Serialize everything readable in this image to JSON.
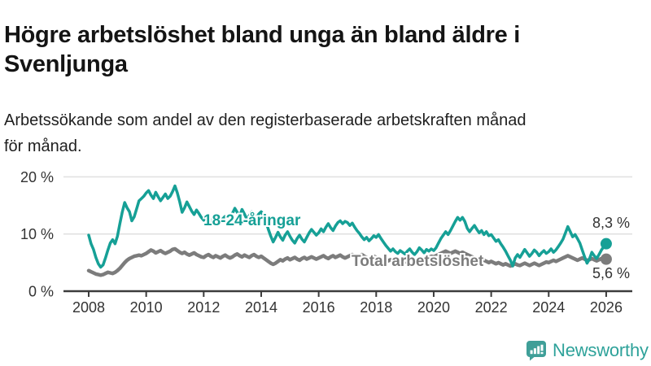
{
  "header": {
    "title": "Högre arbetslöshet bland unga än bland äldre i\nSvenljunga",
    "subtitle": "Arbetssökande som andel av den registerbaserade arbetskraften månad\nför månad."
  },
  "branding": {
    "logo_text": "Newsworthy",
    "logo_color": "#2ea29a",
    "logo_icon": "chart-bars-speech-bubble"
  },
  "colors": {
    "accent_teal": "#16A096",
    "line_gray": "#7c7c7c",
    "axis": "#3c3c3c",
    "grid": "#e1e1e1",
    "tick_text": "#333333"
  },
  "chart_data": {
    "type": "line",
    "unit": "%",
    "x_start_year": 2008,
    "points_per_year": 12,
    "ylim": [
      0,
      20
    ],
    "grid": true,
    "yticks": [
      {
        "value": 0,
        "label": "0 %"
      },
      {
        "value": 10,
        "label": "10 %"
      },
      {
        "value": 20,
        "label": "20 %"
      }
    ],
    "xticks": [
      {
        "year": 2008,
        "label": "2008"
      },
      {
        "year": 2010,
        "label": "2010"
      },
      {
        "year": 2012,
        "label": "2012"
      },
      {
        "year": 2014,
        "label": "2014"
      },
      {
        "year": 2016,
        "label": "2016"
      },
      {
        "year": 2018,
        "label": "2018"
      },
      {
        "year": 2020,
        "label": "2020"
      },
      {
        "year": 2022,
        "label": "2022"
      },
      {
        "year": 2024,
        "label": "2024"
      },
      {
        "year": 2026,
        "label": "2026"
      }
    ],
    "series": [
      {
        "name": "18-24-åringar",
        "color": "#16A096",
        "stroke_width": 3.5,
        "end_label": "8,3 %",
        "end_value": 8.3,
        "values": [
          9.8,
          8.3,
          7.3,
          5.9,
          4.8,
          4.2,
          4.6,
          5.8,
          7.2,
          8.4,
          9.0,
          8.3,
          9.6,
          11.8,
          13.8,
          15.5,
          14.6,
          13.9,
          12.3,
          13.0,
          14.4,
          15.8,
          16.2,
          16.6,
          17.2,
          17.6,
          16.8,
          16.2,
          17.3,
          16.5,
          15.8,
          16.4,
          17.0,
          16.2,
          16.6,
          17.4,
          18.4,
          17.2,
          15.6,
          13.8,
          14.6,
          15.6,
          14.8,
          14.0,
          13.4,
          14.2,
          13.6,
          12.9,
          12.4,
          13.2,
          12.6,
          12.1,
          12.9,
          13.4,
          12.6,
          12.0,
          12.7,
          13.1,
          12.4,
          12.8,
          13.6,
          14.5,
          13.8,
          13.1,
          14.3,
          13.5,
          12.6,
          13.2,
          13.9,
          13.4,
          12.8,
          13.5,
          13.9,
          13.2,
          12.1,
          10.8,
          9.6,
          8.6,
          9.4,
          10.3,
          9.5,
          8.9,
          9.8,
          10.4,
          9.6,
          8.9,
          8.4,
          9.2,
          9.8,
          9.1,
          8.6,
          9.4,
          10.2,
          10.8,
          10.3,
          9.8,
          10.2,
          10.9,
          10.4,
          11.2,
          11.8,
          11.1,
          10.6,
          11.4,
          12.0,
          12.3,
          11.8,
          12.2,
          12.0,
          11.5,
          11.9,
          11.2,
          10.6,
          10.1,
          9.5,
          9.0,
          9.4,
          8.8,
          9.2,
          9.7,
          9.4,
          9.9,
          9.2,
          8.6,
          8.0,
          7.5,
          7.0,
          7.4,
          6.9,
          6.6,
          7.1,
          6.8,
          6.5,
          7.0,
          7.4,
          6.8,
          6.4,
          6.9,
          7.6,
          7.2,
          6.7,
          7.3,
          7.0,
          7.4,
          7.1,
          7.6,
          8.4,
          9.2,
          9.8,
          10.4,
          9.9,
          10.6,
          11.4,
          12.2,
          12.9,
          12.4,
          12.9,
          12.2,
          11.0,
          10.4,
          11.0,
          11.5,
          10.8,
          10.2,
          10.6,
          9.9,
          10.4,
          9.7,
          9.9,
          9.3,
          8.7,
          9.0,
          8.3,
          7.7,
          7.0,
          6.2,
          5.4,
          4.4,
          5.8,
          6.4,
          5.9,
          6.6,
          7.3,
          6.7,
          6.1,
          6.6,
          7.2,
          6.8,
          6.2,
          6.7,
          7.1,
          6.6,
          6.9,
          7.4,
          6.8,
          7.2,
          7.8,
          8.4,
          9.1,
          10.2,
          11.3,
          10.4,
          9.5,
          9.9,
          9.2,
          8.4,
          7.2,
          6.0,
          4.9,
          5.6,
          6.8,
          6.2,
          5.7,
          6.4,
          7.2,
          7.8,
          8.3
        ]
      },
      {
        "name": "Total arbetslöshet",
        "color": "#7c7c7c",
        "stroke_width": 4.5,
        "end_label": "5,6 %",
        "end_value": 5.6,
        "values": [
          3.6,
          3.4,
          3.2,
          3.0,
          2.9,
          2.8,
          2.9,
          3.1,
          3.3,
          3.2,
          3.1,
          3.3,
          3.6,
          4.0,
          4.5,
          5.0,
          5.4,
          5.7,
          5.9,
          6.1,
          6.2,
          6.3,
          6.2,
          6.4,
          6.6,
          6.9,
          7.2,
          7.0,
          6.7,
          6.9,
          7.1,
          6.8,
          6.6,
          6.8,
          7.0,
          7.3,
          7.4,
          7.1,
          6.8,
          6.6,
          6.8,
          6.5,
          6.3,
          6.5,
          6.7,
          6.4,
          6.2,
          6.0,
          5.9,
          6.2,
          6.4,
          6.1,
          5.9,
          6.2,
          6.0,
          5.8,
          6.1,
          6.3,
          6.0,
          5.8,
          6.0,
          6.3,
          6.5,
          6.2,
          6.0,
          6.3,
          6.1,
          5.9,
          6.2,
          6.4,
          6.1,
          5.9,
          6.1,
          5.8,
          5.5,
          5.2,
          4.9,
          4.7,
          4.9,
          5.2,
          5.5,
          5.3,
          5.6,
          5.8,
          5.5,
          5.7,
          5.9,
          5.6,
          5.4,
          5.7,
          5.9,
          5.6,
          5.8,
          6.0,
          5.8,
          5.6,
          5.8,
          6.0,
          6.2,
          5.9,
          5.7,
          6.0,
          6.2,
          5.9,
          6.1,
          6.3,
          6.0,
          5.8,
          6.0,
          6.2,
          6.4,
          6.1,
          5.9,
          6.2,
          6.4,
          6.1,
          5.9,
          5.7,
          5.9,
          6.1,
          5.9,
          5.7,
          5.5,
          5.7,
          5.5,
          5.3,
          5.5,
          5.3,
          5.1,
          5.3,
          5.5,
          5.3,
          5.1,
          5.3,
          5.5,
          5.3,
          5.1,
          5.3,
          5.5,
          5.7,
          5.5,
          5.7,
          5.9,
          6.1,
          6.0,
          6.2,
          6.4,
          6.6,
          6.8,
          7.0,
          6.8,
          6.6,
          6.8,
          7.0,
          6.8,
          6.6,
          6.8,
          6.6,
          6.4,
          6.2,
          6.0,
          5.8,
          5.6,
          5.8,
          5.6,
          5.4,
          5.2,
          5.0,
          5.2,
          5.0,
          4.8,
          5.0,
          4.8,
          4.6,
          4.8,
          4.6,
          4.4,
          4.6,
          4.8,
          4.6,
          4.5,
          4.7,
          4.9,
          4.7,
          4.5,
          4.7,
          4.9,
          4.7,
          4.5,
          4.7,
          4.9,
          5.1,
          5.0,
          5.2,
          5.4,
          5.2,
          5.4,
          5.6,
          5.8,
          6.0,
          6.2,
          6.0,
          5.8,
          5.6,
          5.4,
          5.6,
          5.8,
          5.6,
          5.4,
          5.5,
          5.7,
          5.5,
          5.3,
          5.5,
          5.7,
          5.5,
          5.6
        ]
      }
    ]
  }
}
